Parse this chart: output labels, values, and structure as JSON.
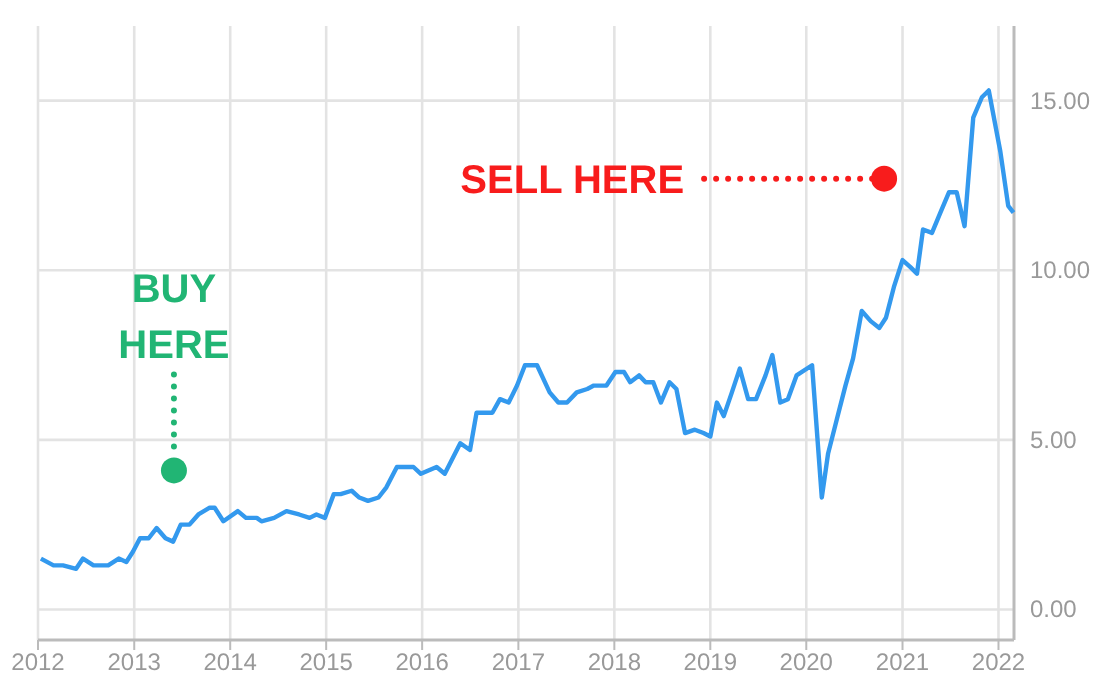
{
  "chart_data": {
    "type": "line",
    "x": [
      "2012-01-12",
      "2012-02-29",
      "2012-04-05",
      "2012-05-25",
      "2012-06-20",
      "2012-07-30",
      "2012-09-24",
      "2012-11-03",
      "2012-12-02",
      "2012-12-27",
      "2013-01-23",
      "2013-02-25",
      "2013-03-27",
      "2013-04-30",
      "2013-05-29",
      "2013-06-27",
      "2013-07-30",
      "2013-09-02",
      "2013-10-15",
      "2013-11-03",
      "2013-12-06",
      "2014-01-30",
      "2014-03-02",
      "2014-04-12",
      "2014-04-30",
      "2014-06-17",
      "2014-08-03",
      "2014-09-20",
      "2014-10-30",
      "2014-11-25",
      "2014-12-27",
      "2015-01-30",
      "2015-02-25",
      "2015-04-08",
      "2015-05-07",
      "2015-06-09",
      "2015-07-19",
      "2015-08-18",
      "2015-09-27",
      "2015-11-03",
      "2015-11-29",
      "2015-12-27",
      "2016-02-25",
      "2016-03-27",
      "2016-05-25",
      "2016-07-01",
      "2016-07-26",
      "2016-09-24",
      "2016-10-23",
      "2016-11-25",
      "2016-12-27",
      "2017-01-26",
      "2017-03-13",
      "2017-04-30",
      "2017-06-02",
      "2017-07-05",
      "2017-08-11",
      "2017-09-20",
      "2017-10-15",
      "2017-12-02",
      "2018-01-05",
      "2018-02-07",
      "2018-03-02",
      "2018-04-05",
      "2018-04-30",
      "2018-05-29",
      "2018-06-27",
      "2018-07-30",
      "2018-08-25",
      "2018-09-27",
      "2018-11-03",
      "2018-12-06",
      "2019-01-01",
      "2019-01-26",
      "2019-02-21",
      "2019-03-24",
      "2019-04-23",
      "2019-05-25",
      "2019-06-24",
      "2019-07-30",
      "2019-08-25",
      "2019-09-24",
      "2019-10-23",
      "2019-11-25",
      "2020-01-23",
      "2020-02-29",
      "2020-03-24",
      "2020-04-26",
      "2020-05-29",
      "2020-06-27",
      "2020-07-30",
      "2020-09-02",
      "2020-10-05",
      "2020-10-30",
      "2020-11-29",
      "2021-01-01",
      "2021-01-30",
      "2021-02-25",
      "2021-03-20",
      "2021-04-23",
      "2021-05-25",
      "2021-06-27",
      "2021-07-26",
      "2021-08-25",
      "2021-09-27",
      "2021-10-30",
      "2021-11-25",
      "2022-01-08",
      "2022-02-07",
      "2022-02-27"
    ],
    "series": [
      {
        "color": "#3399ee",
        "values": [
          1.5,
          1.3,
          1.3,
          1.2,
          1.5,
          1.3,
          1.3,
          1.5,
          1.4,
          1.7,
          2.1,
          2.1,
          2.4,
          2.1,
          2.0,
          2.5,
          2.5,
          2.8,
          3.0,
          3.0,
          2.6,
          2.9,
          2.7,
          2.7,
          2.6,
          2.7,
          2.9,
          2.8,
          2.7,
          2.8,
          2.7,
          3.4,
          3.4,
          3.5,
          3.3,
          3.2,
          3.3,
          3.6,
          4.2,
          4.2,
          4.2,
          4.0,
          4.2,
          4.0,
          4.9,
          4.7,
          5.8,
          5.8,
          6.2,
          6.1,
          6.6,
          7.2,
          7.2,
          6.4,
          6.1,
          6.1,
          6.4,
          6.5,
          6.6,
          6.6,
          7.0,
          7.0,
          6.7,
          6.9,
          6.7,
          6.7,
          6.1,
          6.7,
          6.5,
          5.2,
          5.3,
          5.2,
          5.1,
          6.1,
          5.7,
          6.4,
          7.1,
          6.2,
          6.2,
          6.9,
          7.5,
          6.1,
          6.2,
          6.9,
          7.2,
          3.3,
          4.6,
          5.6,
          6.6,
          7.4,
          8.8,
          8.5,
          8.3,
          8.6,
          9.5,
          10.3,
          10.1,
          9.9,
          11.2,
          11.1,
          11.7,
          12.3,
          12.3,
          11.3,
          14.5,
          15.1,
          15.3,
          13.5,
          11.9,
          11.7
        ]
      }
    ],
    "xlim": [
      "2012-01-01",
      "2022-03-01"
    ],
    "ylim": [
      -0.9,
      17.2
    ],
    "xticks": [
      "2012",
      "2013",
      "2014",
      "2015",
      "2016",
      "2017",
      "2018",
      "2019",
      "2020",
      "2021",
      "2022"
    ],
    "yticks": [
      {
        "value": 0,
        "label": "0.00"
      },
      {
        "value": 5,
        "label": "5.00"
      },
      {
        "value": 10,
        "label": "10.00"
      },
      {
        "value": 15,
        "label": "15.00"
      }
    ],
    "grid": true,
    "marker": "none",
    "line_style": "solid",
    "annotations": [
      {
        "text": "BUY HERE",
        "x": "2013-06-01",
        "y": 4.1
      },
      {
        "text": "SELL HERE",
        "x": "2020-10-23",
        "y": 12.7
      }
    ]
  }
}
